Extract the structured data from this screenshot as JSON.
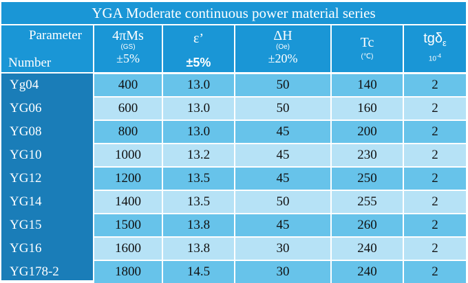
{
  "title": "YGA Moderate continuous power material series",
  "header": {
    "parameter_label": "Parameter",
    "number_label": "Number",
    "columns": [
      {
        "main": "4πMs",
        "unit": "(GS)",
        "tolerance": "±5%"
      },
      {
        "main": "ε’",
        "unit": "",
        "tolerance": "±5%"
      },
      {
        "main": "ΔH",
        "unit": "(Oe)",
        "tolerance": "±20%"
      },
      {
        "main": "Tc",
        "unit": "(℃)",
        "tolerance": ""
      },
      {
        "main": "tgδ",
        "subscript": "ε",
        "unit": "10",
        "unit_exp": "-4",
        "tolerance": ""
      }
    ]
  },
  "rows": [
    {
      "number": "Yg04",
      "ms": "400",
      "eps": "13.0",
      "dh": "50",
      "tc": "140",
      "tg": "2"
    },
    {
      "number": "YG06",
      "ms": "600",
      "eps": "13.0",
      "dh": "50",
      "tc": "160",
      "tg": "2"
    },
    {
      "number": "YG08",
      "ms": "800",
      "eps": "13.0",
      "dh": "45",
      "tc": "200",
      "tg": "2"
    },
    {
      "number": "YG10",
      "ms": "1000",
      "eps": "13.2",
      "dh": "45",
      "tc": "230",
      "tg": "2"
    },
    {
      "number": "YG12",
      "ms": "1200",
      "eps": "13.5",
      "dh": "45",
      "tc": "250",
      "tg": "2"
    },
    {
      "number": "YG14",
      "ms": "1400",
      "eps": "13.5",
      "dh": "50",
      "tc": "255",
      "tg": "2"
    },
    {
      "number": "YG15",
      "ms": "1500",
      "eps": "13.8",
      "dh": "45",
      "tc": "260",
      "tg": "2"
    },
    {
      "number": "YG16",
      "ms": "1600",
      "eps": "13.8",
      "dh": "30",
      "tc": "240",
      "tg": "2"
    },
    {
      "number": "YG178-2",
      "ms": "1800",
      "eps": "14.5",
      "dh": "30",
      "tc": "240",
      "tg": "2"
    }
  ],
  "colors": {
    "header_bg": "#1a96d6",
    "number_col_bg": "#1a7db8",
    "row_dark": "#67c3ea",
    "row_light": "#b6e2f6"
  }
}
